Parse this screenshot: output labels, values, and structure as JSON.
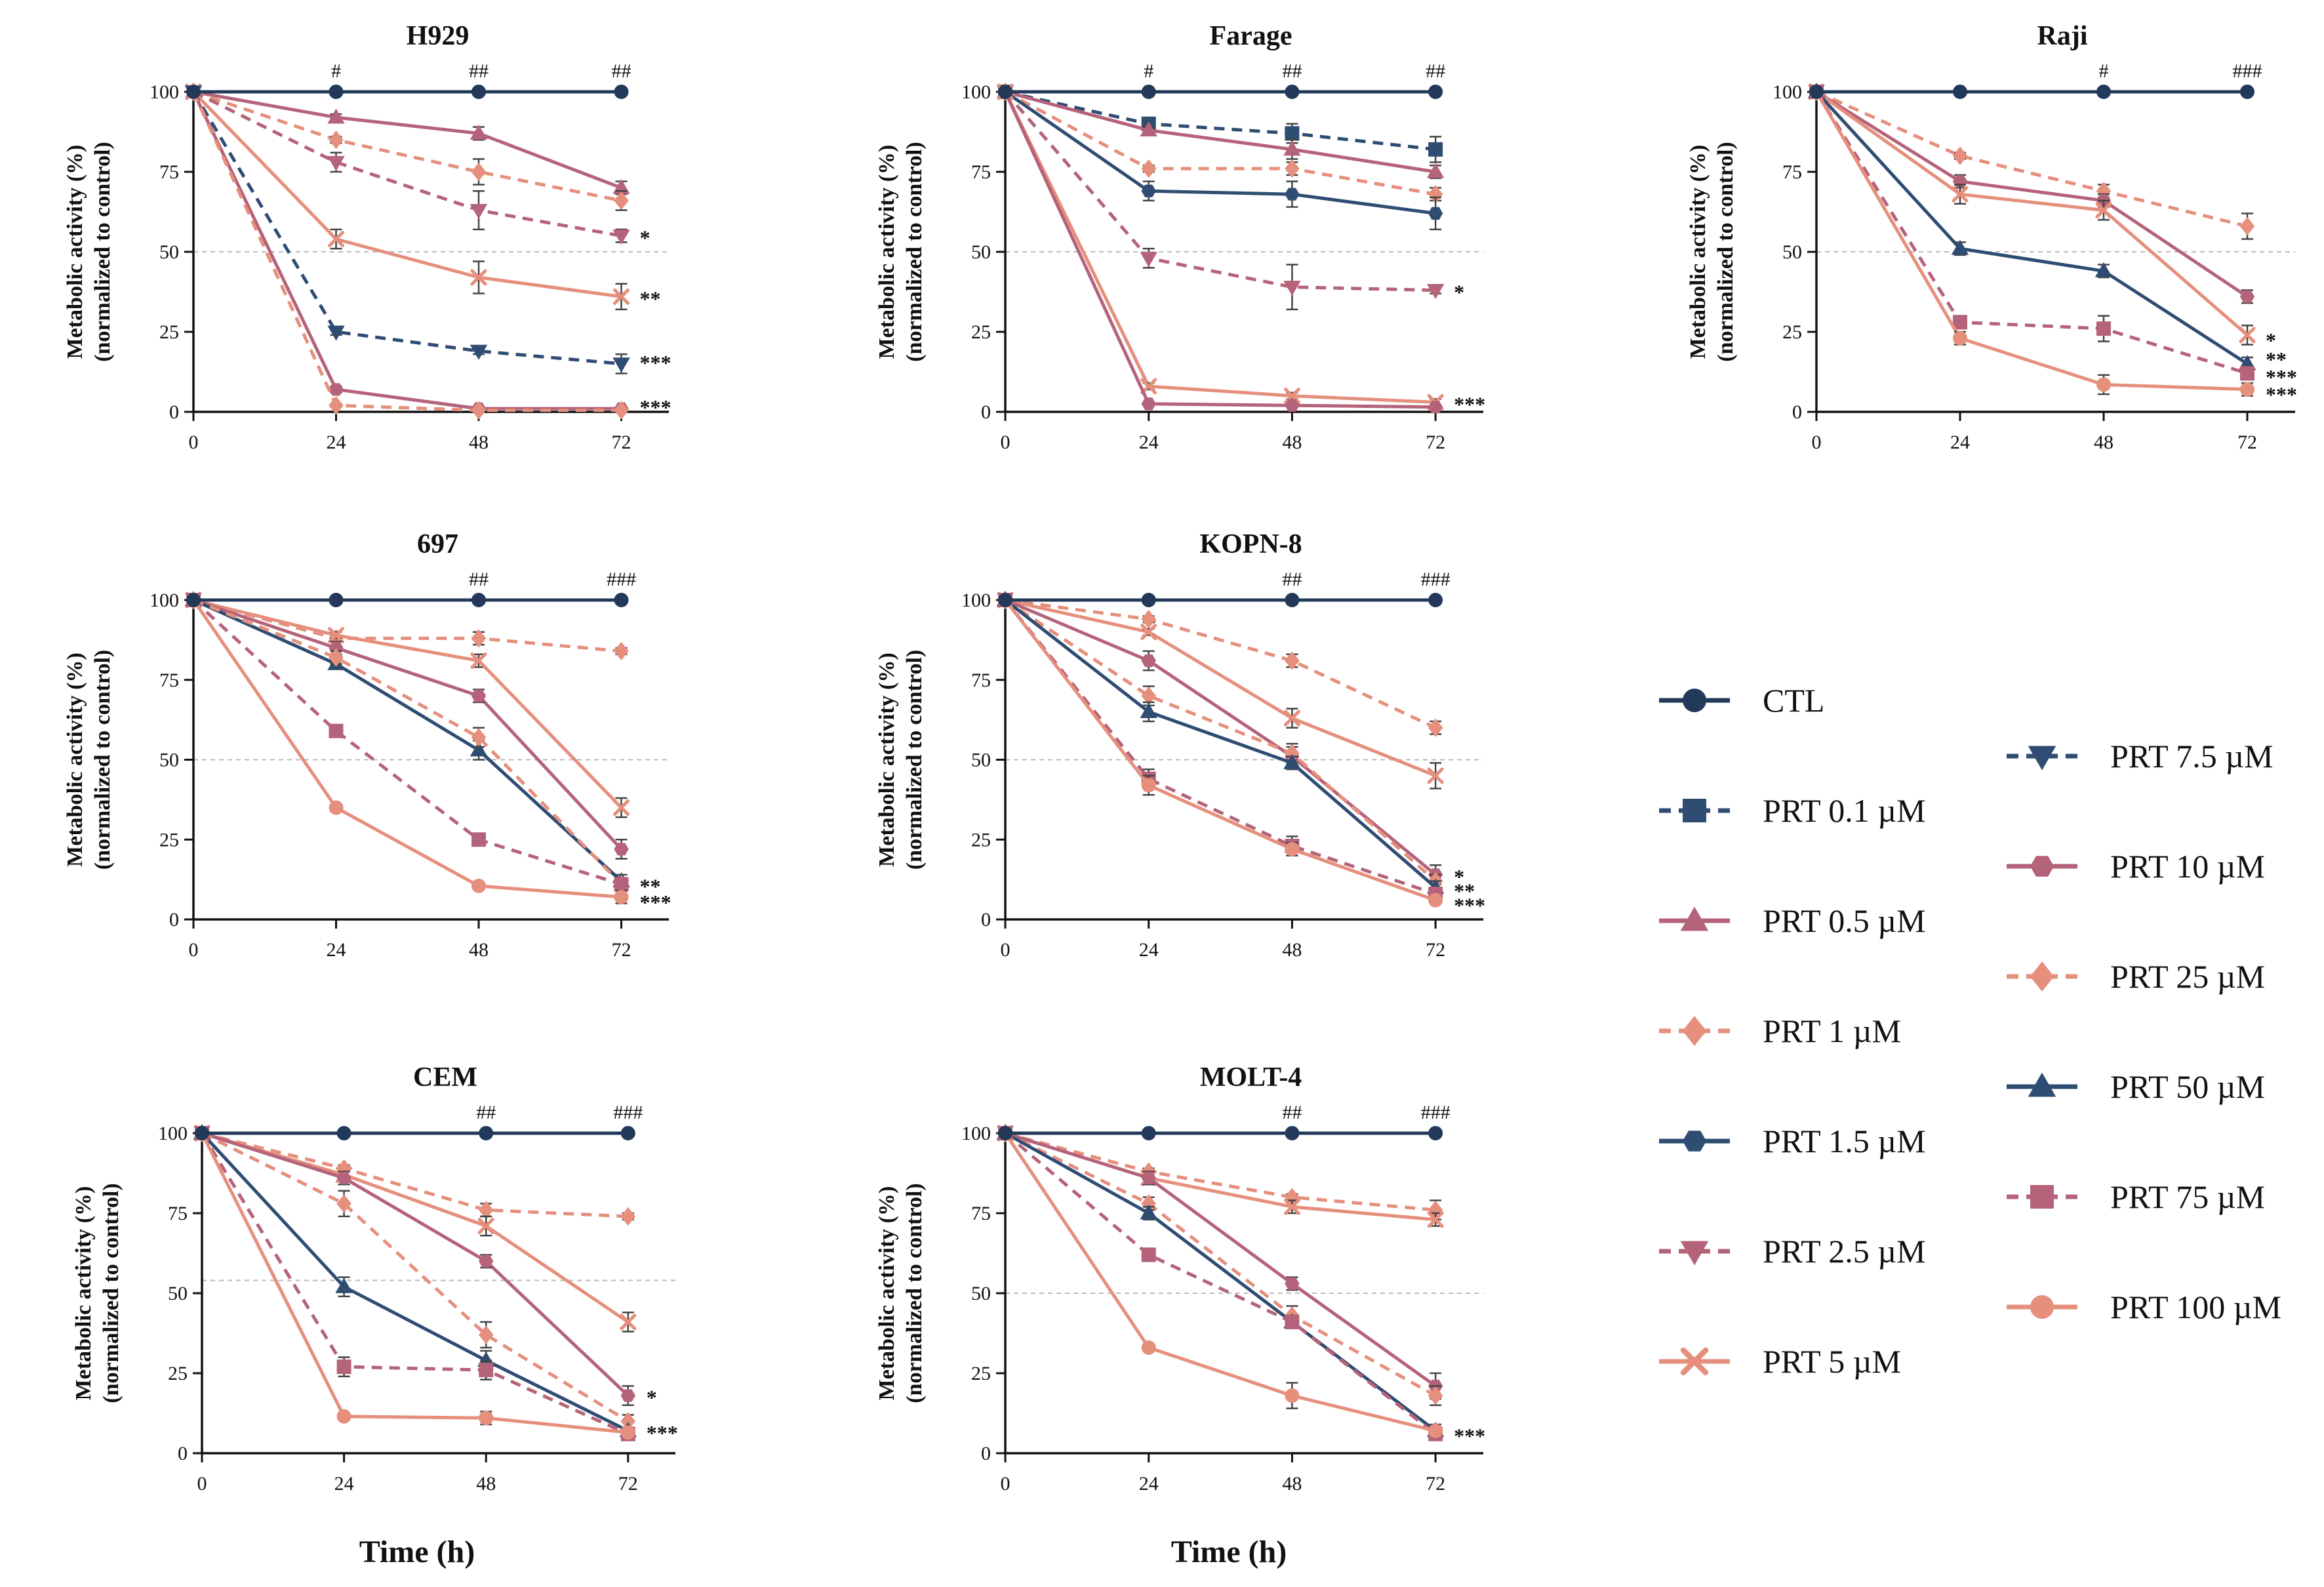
{
  "figure": {
    "xlabel": "Time (h)",
    "ylabel_line1": "Metabolic activity (%)",
    "ylabel_line2": "(normalized to control)"
  },
  "styles": {
    "CTL": {
      "color": "#22395a",
      "marker": "circle",
      "dashed": false
    },
    "PRT 0.1 µM": {
      "color": "#2f4c72",
      "marker": "square",
      "dashed": true
    },
    "PRT 0.5 µM": {
      "color": "#b5637a",
      "marker": "triangle-up",
      "dashed": false
    },
    "PRT 1 µM": {
      "color": "#e58f7c",
      "marker": "diamond",
      "dashed": true
    },
    "PRT 1.5 µM": {
      "color": "#2f4c72",
      "marker": "hexagon",
      "dashed": false
    },
    "PRT 2.5 µM": {
      "color": "#b5637a",
      "marker": "triangle-down",
      "dashed": true
    },
    "PRT 5 µM": {
      "color": "#e58f7c",
      "marker": "x",
      "dashed": false
    },
    "PRT 7.5 µM": {
      "color": "#2f4c72",
      "marker": "triangle-down",
      "dashed": true
    },
    "PRT 10 µM": {
      "color": "#b5637a",
      "marker": "hexagon",
      "dashed": false
    },
    "PRT 25 µM": {
      "color": "#e58f7c",
      "marker": "diamond",
      "dashed": true
    },
    "PRT 50 µM": {
      "color": "#2f4c72",
      "marker": "triangle-up",
      "dashed": false
    },
    "PRT 75 µM": {
      "color": "#b5637a",
      "marker": "square",
      "dashed": true
    },
    "PRT 100 µM": {
      "color": "#e58f7c",
      "marker": "circle",
      "dashed": false
    }
  },
  "legend": [
    [
      "CTL",
      "PRT 0.1 µM",
      "PRT 0.5 µM",
      "PRT 1 µM",
      "PRT 1.5 µM",
      "PRT 2.5 µM",
      "PRT 5 µM"
    ],
    [
      "PRT 7.5 µM",
      "PRT 10 µM",
      "PRT 25 µM",
      "PRT 50 µM",
      "PRT 75 µM",
      "PRT 100 µM"
    ]
  ],
  "chart_data": [
    {
      "type": "line",
      "title": "H929",
      "x": [
        0,
        24,
        48,
        72
      ],
      "xlim": [
        0,
        80
      ],
      "ylim": [
        0,
        100
      ],
      "yticks": [
        0,
        25,
        50,
        75,
        100
      ],
      "ref_line": 50,
      "hash": [
        "",
        "#",
        "##",
        "##"
      ],
      "series": [
        {
          "name": "CTL",
          "values": [
            100,
            100,
            100,
            100
          ],
          "err": [
            0,
            0,
            0,
            0
          ]
        },
        {
          "name": "PRT 0.5 µM",
          "values": [
            100,
            92,
            87,
            70
          ],
          "err": [
            0,
            1,
            2,
            2
          ]
        },
        {
          "name": "PRT 1 µM",
          "values": [
            100,
            85,
            75,
            66
          ],
          "err": [
            0,
            1,
            4,
            3
          ]
        },
        {
          "name": "PRT 2.5 µM",
          "values": [
            100,
            78,
            63,
            55
          ],
          "err": [
            0,
            3,
            6,
            2
          ]
        },
        {
          "name": "PRT 5 µM",
          "values": [
            100,
            54,
            42,
            36
          ],
          "err": [
            0,
            3,
            5,
            4
          ]
        },
        {
          "name": "PRT 7.5 µM",
          "values": [
            100,
            25,
            19,
            15
          ],
          "err": [
            0,
            1,
            1,
            3
          ]
        },
        {
          "name": "PRT 10 µM",
          "values": [
            100,
            7,
            1,
            1
          ],
          "err": [
            0,
            1,
            0.5,
            0.5
          ]
        },
        {
          "name": "PRT 25 µM",
          "values": [
            100,
            2,
            0.5,
            0.5
          ],
          "err": [
            0,
            0.5,
            0.5,
            0.5
          ]
        }
      ],
      "stars": [
        {
          "y": 55,
          "label": "*"
        },
        {
          "y": 36,
          "label": "**"
        },
        {
          "y": 16,
          "label": "***"
        },
        {
          "y": 2,
          "label": "***"
        }
      ]
    },
    {
      "type": "line",
      "title": "Farage",
      "x": [
        0,
        24,
        48,
        72
      ],
      "xlim": [
        0,
        80
      ],
      "ylim": [
        0,
        100
      ],
      "yticks": [
        0,
        25,
        50,
        75,
        100
      ],
      "ref_line": 50,
      "hash": [
        "",
        "#",
        "##",
        "##"
      ],
      "series": [
        {
          "name": "CTL",
          "values": [
            100,
            100,
            100,
            100
          ],
          "err": [
            0,
            0,
            0,
            0
          ]
        },
        {
          "name": "PRT 0.1 µM",
          "values": [
            100,
            90,
            87,
            82
          ],
          "err": [
            0,
            1,
            3,
            4
          ]
        },
        {
          "name": "PRT 0.5 µM",
          "values": [
            100,
            88,
            82,
            75
          ],
          "err": [
            0,
            1,
            3,
            2
          ]
        },
        {
          "name": "PRT 1 µM",
          "values": [
            100,
            76,
            76,
            68
          ],
          "err": [
            0,
            1,
            2,
            2
          ]
        },
        {
          "name": "PRT 1.5 µM",
          "values": [
            100,
            69,
            68,
            62
          ],
          "err": [
            0,
            3,
            4,
            5
          ]
        },
        {
          "name": "PRT 2.5 µM",
          "values": [
            100,
            48,
            39,
            38
          ],
          "err": [
            0,
            3,
            7,
            1
          ]
        },
        {
          "name": "PRT 5 µM",
          "values": [
            100,
            8,
            5,
            3
          ],
          "err": [
            0,
            1,
            1,
            1
          ]
        },
        {
          "name": "PRT 10 µM",
          "values": [
            100,
            2.5,
            2,
            1.5
          ],
          "err": [
            0,
            0.5,
            0.5,
            0.5
          ]
        }
      ],
      "stars": [
        {
          "y": 38,
          "label": "*"
        },
        {
          "y": 3,
          "label": "***"
        }
      ]
    },
    {
      "type": "line",
      "title": "Raji",
      "x": [
        0,
        24,
        48,
        72
      ],
      "xlim": [
        0,
        80
      ],
      "ylim": [
        0,
        100
      ],
      "yticks": [
        0,
        25,
        50,
        75,
        100
      ],
      "ref_line": 50,
      "hash": [
        "",
        "",
        "#",
        "###"
      ],
      "series": [
        {
          "name": "CTL",
          "values": [
            100,
            100,
            100,
            100
          ],
          "err": [
            0,
            0,
            0,
            0
          ]
        },
        {
          "name": "PRT 25 µM",
          "values": [
            100,
            80,
            69,
            58
          ],
          "err": [
            0,
            1,
            2,
            4
          ]
        },
        {
          "name": "PRT 10 µM",
          "values": [
            100,
            72,
            66,
            36
          ],
          "err": [
            0,
            2,
            2,
            2
          ]
        },
        {
          "name": "PRT 5 µM",
          "values": [
            100,
            68,
            63,
            24
          ],
          "err": [
            0,
            3,
            3,
            3
          ]
        },
        {
          "name": "PRT 50 µM",
          "values": [
            100,
            51,
            44,
            15
          ],
          "err": [
            0,
            2,
            2,
            2
          ]
        },
        {
          "name": "PRT 75 µM",
          "values": [
            100,
            28,
            26,
            12
          ],
          "err": [
            0,
            2,
            4,
            2
          ]
        },
        {
          "name": "PRT 100 µM",
          "values": [
            100,
            23,
            8.5,
            7
          ],
          "err": [
            0,
            2,
            3,
            2
          ]
        }
      ],
      "stars": [
        {
          "y": 23,
          "label": "*"
        },
        {
          "y": 17,
          "label": "**"
        },
        {
          "y": 11.5,
          "label": "***"
        },
        {
          "y": 6,
          "label": "***"
        }
      ]
    },
    {
      "type": "line",
      "title": "697",
      "x": [
        0,
        24,
        48,
        72
      ],
      "xlim": [
        0,
        80
      ],
      "ylim": [
        0,
        100
      ],
      "yticks": [
        0,
        25,
        50,
        75,
        100
      ],
      "ref_line": 50,
      "hash": [
        "",
        "",
        "##",
        "###"
      ],
      "series": [
        {
          "name": "CTL",
          "values": [
            100,
            100,
            100,
            100
          ],
          "err": [
            0,
            0,
            0,
            0
          ]
        },
        {
          "name": "PRT 25 µM",
          "values": [
            100,
            88,
            88,
            84
          ],
          "err": [
            0,
            1,
            2,
            1
          ]
        },
        {
          "name": "PRT 5 µM",
          "values": [
            100,
            89,
            81,
            35
          ],
          "err": [
            0,
            1,
            2,
            3
          ]
        },
        {
          "name": "PRT 10 µM",
          "values": [
            100,
            85,
            70,
            22
          ],
          "err": [
            0,
            2,
            2,
            3
          ]
        },
        {
          "name": "PRT 50 µM",
          "values": [
            100,
            80,
            53,
            12
          ],
          "err": [
            0,
            1,
            3,
            2
          ]
        },
        {
          "name": "PRT 1 µM",
          "values": [
            100,
            82,
            57,
            11
          ],
          "err": [
            0,
            2,
            3,
            2
          ]
        },
        {
          "name": "PRT 75 µM",
          "values": [
            100,
            59,
            25,
            11
          ],
          "err": [
            0,
            1,
            1,
            1
          ]
        },
        {
          "name": "PRT 100 µM",
          "values": [
            100,
            35,
            10.5,
            7
          ],
          "err": [
            0,
            1,
            1,
            2
          ]
        }
      ],
      "stars": [
        {
          "y": 11,
          "label": "**"
        },
        {
          "y": 6,
          "label": "***"
        }
      ]
    },
    {
      "type": "line",
      "title": "KOPN-8",
      "x": [
        0,
        24,
        48,
        72
      ],
      "xlim": [
        0,
        80
      ],
      "ylim": [
        0,
        100
      ],
      "yticks": [
        0,
        25,
        50,
        75,
        100
      ],
      "ref_line": 50,
      "hash": [
        "",
        "",
        "##",
        "###"
      ],
      "series": [
        {
          "name": "CTL",
          "values": [
            100,
            100,
            100,
            100
          ],
          "err": [
            0,
            0,
            0,
            0
          ]
        },
        {
          "name": "PRT 25 µM",
          "values": [
            100,
            94,
            81,
            60
          ],
          "err": [
            0,
            1,
            2,
            2
          ]
        },
        {
          "name": "PRT 5 µM",
          "values": [
            100,
            90,
            63,
            45
          ],
          "err": [
            0,
            1,
            3,
            4
          ]
        },
        {
          "name": "PRT 10 µM",
          "values": [
            100,
            81,
            51,
            14
          ],
          "err": [
            0,
            3,
            3,
            3
          ]
        },
        {
          "name": "PRT 1 µM",
          "values": [
            100,
            70,
            52,
            12
          ],
          "err": [
            0,
            3,
            3,
            2
          ]
        },
        {
          "name": "PRT 50 µM",
          "values": [
            100,
            65,
            49,
            10
          ],
          "err": [
            0,
            3,
            2,
            2
          ]
        },
        {
          "name": "PRT 75 µM",
          "values": [
            100,
            44,
            23,
            8
          ],
          "err": [
            0,
            3,
            3,
            2
          ]
        },
        {
          "name": "PRT 100 µM",
          "values": [
            100,
            42,
            22,
            6
          ],
          "err": [
            0,
            3,
            2,
            1
          ]
        }
      ],
      "stars": [
        {
          "y": 14,
          "label": "*"
        },
        {
          "y": 9.5,
          "label": "**"
        },
        {
          "y": 5,
          "label": "***"
        }
      ]
    },
    {
      "type": "line",
      "title": "CEM",
      "x": [
        0,
        24,
        48,
        72
      ],
      "xlim": [
        0,
        80
      ],
      "ylim": [
        0,
        100
      ],
      "yticks": [
        0,
        25,
        50,
        75,
        100
      ],
      "ref_line": 54,
      "hash": [
        "",
        "",
        "##",
        "###"
      ],
      "series": [
        {
          "name": "CTL",
          "values": [
            100,
            100,
            100,
            100
          ],
          "err": [
            0,
            0,
            0,
            0
          ]
        },
        {
          "name": "PRT 25 µM",
          "values": [
            100,
            89,
            76,
            74
          ],
          "err": [
            0,
            1,
            2,
            1
          ]
        },
        {
          "name": "PRT 5 µM",
          "values": [
            100,
            87,
            71,
            41
          ],
          "err": [
            0,
            1,
            3,
            3
          ]
        },
        {
          "name": "PRT 10 µM",
          "values": [
            100,
            86,
            60,
            18
          ],
          "err": [
            0,
            2,
            2,
            3
          ]
        },
        {
          "name": "PRT 1 µM",
          "values": [
            100,
            78,
            37,
            10
          ],
          "err": [
            0,
            4,
            4,
            2
          ]
        },
        {
          "name": "PRT 50 µM",
          "values": [
            100,
            52,
            29,
            7
          ],
          "err": [
            0,
            3,
            3,
            1
          ]
        },
        {
          "name": "PRT 75 µM",
          "values": [
            100,
            27,
            26,
            6
          ],
          "err": [
            0,
            3,
            3,
            1
          ]
        },
        {
          "name": "PRT 100 µM",
          "values": [
            100,
            11.5,
            11,
            6.5
          ],
          "err": [
            0,
            1,
            2,
            1
          ]
        }
      ],
      "stars": [
        {
          "y": 18,
          "label": "*"
        },
        {
          "y": 7,
          "label": "***"
        }
      ]
    },
    {
      "type": "line",
      "title": "MOLT-4",
      "x": [
        0,
        24,
        48,
        72
      ],
      "xlim": [
        0,
        80
      ],
      "ylim": [
        0,
        100
      ],
      "yticks": [
        0,
        25,
        50,
        75,
        100
      ],
      "ref_line": 50,
      "hash": [
        "",
        "",
        "##",
        "###"
      ],
      "series": [
        {
          "name": "CTL",
          "values": [
            100,
            100,
            100,
            100
          ],
          "err": [
            0,
            0,
            0,
            0
          ]
        },
        {
          "name": "PRT 25 µM",
          "values": [
            100,
            88,
            80,
            76
          ],
          "err": [
            0,
            1,
            1,
            3
          ]
        },
        {
          "name": "PRT 5 µM",
          "values": [
            100,
            86,
            77,
            73
          ],
          "err": [
            0,
            2,
            2,
            2
          ]
        },
        {
          "name": "PRT 10 µM",
          "values": [
            100,
            86,
            53,
            21
          ],
          "err": [
            0,
            2,
            2,
            4
          ]
        },
        {
          "name": "PRT 1 µM",
          "values": [
            100,
            78,
            43,
            18
          ],
          "err": [
            0,
            2,
            3,
            3
          ]
        },
        {
          "name": "PRT 50 µM",
          "values": [
            100,
            75,
            41,
            7
          ],
          "err": [
            0,
            2,
            2,
            2
          ]
        },
        {
          "name": "PRT 75 µM",
          "values": [
            100,
            62,
            41,
            6
          ],
          "err": [
            0,
            2,
            2,
            1
          ]
        },
        {
          "name": "PRT 100 µM",
          "values": [
            100,
            33,
            18,
            7
          ],
          "err": [
            0,
            1,
            4,
            1
          ]
        }
      ],
      "stars": [
        {
          "y": 6,
          "label": "***"
        }
      ]
    }
  ]
}
